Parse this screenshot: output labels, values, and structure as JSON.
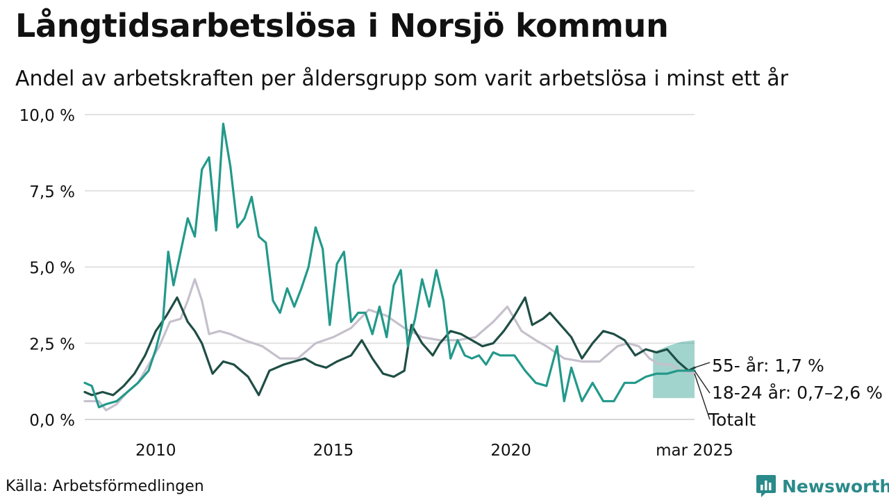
{
  "title": "Långtidsarbetslösa i Norsjö kommun",
  "subtitle": "Andel av arbetskraften per åldersgrupp som varit arbetslösa i minst ett år",
  "source": "Källa: Arbetsförmedlingen",
  "brand": {
    "name": "Newsworthy",
    "color": "#2a8a8a",
    "icon": "newsworthy-logo-icon"
  },
  "chart_data": {
    "type": "line",
    "ylim": [
      0,
      10
    ],
    "xlim": [
      2008.0,
      2025.17
    ],
    "yticks": [
      0,
      2.5,
      5,
      7.5,
      10
    ],
    "ytick_labels": [
      "0,0 %",
      "2,5 %",
      "5,0 %",
      "7,5 %",
      "10,0 %"
    ],
    "xticks": [
      2010,
      2015,
      2020,
      2025.17
    ],
    "xtick_labels": [
      "2010",
      "2015",
      "2020",
      "mar 2025"
    ],
    "grid": "horizontal",
    "series": [
      {
        "name": "Totalt",
        "label": "Totalt",
        "color": "#c5c0cc",
        "x": [
          2008.0,
          2008.4,
          2008.6,
          2008.9,
          2009.2,
          2009.5,
          2009.8,
          2010.1,
          2010.4,
          2010.7,
          2010.9,
          2011.1,
          2011.3,
          2011.5,
          2011.8,
          2012.1,
          2012.5,
          2013.0,
          2013.5,
          2014.0,
          2014.5,
          2015.0,
          2015.5,
          2016.0,
          2016.5,
          2017.0,
          2017.5,
          2018.0,
          2018.5,
          2019.0,
          2019.5,
          2019.9,
          2020.3,
          2020.7,
          2021.0,
          2021.5,
          2022.0,
          2022.5,
          2023.0,
          2023.3,
          2023.6,
          2023.9,
          2024.2,
          2024.5,
          2024.8,
          2025.17
        ],
        "y": [
          0.6,
          0.6,
          0.3,
          0.5,
          0.9,
          1.2,
          1.8,
          2.4,
          3.2,
          3.3,
          3.9,
          4.6,
          3.9,
          2.8,
          2.9,
          2.8,
          2.6,
          2.4,
          2.0,
          2.0,
          2.5,
          2.7,
          3.0,
          3.6,
          3.4,
          3.0,
          2.7,
          2.6,
          2.6,
          2.7,
          3.2,
          3.7,
          2.9,
          2.6,
          2.4,
          2.0,
          1.9,
          1.9,
          2.4,
          2.5,
          2.4,
          2.0,
          1.8,
          1.8,
          1.6,
          1.5
        ]
      },
      {
        "name": "55- år",
        "label": "55- år: 1,7 %",
        "color": "#1f4e45",
        "x": [
          2008.0,
          2008.2,
          2008.5,
          2008.8,
          2009.1,
          2009.4,
          2009.7,
          2010.0,
          2010.3,
          2010.6,
          2010.9,
          2011.1,
          2011.3,
          2011.6,
          2011.9,
          2012.2,
          2012.6,
          2012.9,
          2013.2,
          2013.6,
          2013.9,
          2014.2,
          2014.5,
          2014.8,
          2015.1,
          2015.5,
          2015.8,
          2016.1,
          2016.4,
          2016.7,
          2017.0,
          2017.2,
          2017.5,
          2017.8,
          2018.0,
          2018.3,
          2018.6,
          2018.9,
          2019.2,
          2019.5,
          2019.8,
          2020.1,
          2020.4,
          2020.6,
          2020.9,
          2021.1,
          2021.4,
          2021.7,
          2022.0,
          2022.3,
          2022.6,
          2022.9,
          2023.2,
          2023.5,
          2023.8,
          2024.1,
          2024.4,
          2024.7,
          2025.0,
          2025.17
        ],
        "y": [
          0.9,
          0.8,
          0.9,
          0.8,
          1.1,
          1.5,
          2.1,
          2.9,
          3.4,
          4.0,
          3.2,
          2.9,
          2.5,
          1.5,
          1.9,
          1.8,
          1.4,
          0.8,
          1.6,
          1.8,
          1.9,
          2.0,
          1.8,
          1.7,
          1.9,
          2.1,
          2.6,
          2.0,
          1.5,
          1.4,
          1.6,
          3.1,
          2.5,
          2.1,
          2.5,
          2.9,
          2.8,
          2.6,
          2.4,
          2.5,
          2.9,
          3.4,
          4.0,
          3.1,
          3.3,
          3.5,
          3.1,
          2.7,
          2.0,
          2.5,
          2.9,
          2.8,
          2.6,
          2.1,
          2.3,
          2.2,
          2.3,
          1.9,
          1.6,
          1.7
        ]
      },
      {
        "name": "18-24 år",
        "label": "18-24 år: 0,7–2,6 %",
        "color": "#22998a",
        "x": [
          2008.0,
          2008.2,
          2008.4,
          2008.6,
          2008.9,
          2009.2,
          2009.5,
          2009.8,
          2010.0,
          2010.2,
          2010.35,
          2010.5,
          2010.7,
          2010.9,
          2011.1,
          2011.3,
          2011.5,
          2011.7,
          2011.9,
          2012.1,
          2012.3,
          2012.5,
          2012.7,
          2012.9,
          2013.1,
          2013.3,
          2013.5,
          2013.7,
          2013.9,
          2014.1,
          2014.3,
          2014.5,
          2014.7,
          2014.9,
          2015.1,
          2015.3,
          2015.5,
          2015.7,
          2015.9,
          2016.1,
          2016.3,
          2016.5,
          2016.7,
          2016.9,
          2017.1,
          2017.3,
          2017.5,
          2017.7,
          2017.9,
          2018.1,
          2018.3,
          2018.5,
          2018.7,
          2018.9,
          2019.1,
          2019.3,
          2019.5,
          2019.7,
          2019.9,
          2020.1,
          2020.4,
          2020.7,
          2021.0,
          2021.3,
          2021.5,
          2021.7,
          2022.0,
          2022.3,
          2022.6,
          2022.9,
          2023.2,
          2023.5,
          2023.8,
          2024.1,
          2024.4,
          2024.7,
          2025.0,
          2025.17
        ],
        "y": [
          1.2,
          1.1,
          0.4,
          0.5,
          0.6,
          0.9,
          1.2,
          1.6,
          2.3,
          3.2,
          5.5,
          4.4,
          5.5,
          6.6,
          6.0,
          8.2,
          8.6,
          6.2,
          9.7,
          8.3,
          6.3,
          6.6,
          7.3,
          6.0,
          5.8,
          3.9,
          3.5,
          4.3,
          3.7,
          4.3,
          5.0,
          6.3,
          5.6,
          3.1,
          5.1,
          5.5,
          3.2,
          3.5,
          3.5,
          2.8,
          3.7,
          2.7,
          4.4,
          4.9,
          2.4,
          3.3,
          4.6,
          3.7,
          4.9,
          3.9,
          2.0,
          2.6,
          2.1,
          2.0,
          2.1,
          1.8,
          2.2,
          2.1,
          2.1,
          2.1,
          1.6,
          1.2,
          1.1,
          2.4,
          0.6,
          1.7,
          0.6,
          1.2,
          0.6,
          0.6,
          1.2,
          1.2,
          1.4,
          1.5,
          1.5,
          1.6,
          1.6,
          1.6
        ],
        "band": {
          "x": [
            2024.0,
            2024.4,
            2024.8,
            2025.17
          ],
          "low": [
            0.7,
            0.7,
            0.7,
            0.7
          ],
          "high": [
            2.2,
            2.4,
            2.55,
            2.6
          ]
        }
      }
    ]
  }
}
